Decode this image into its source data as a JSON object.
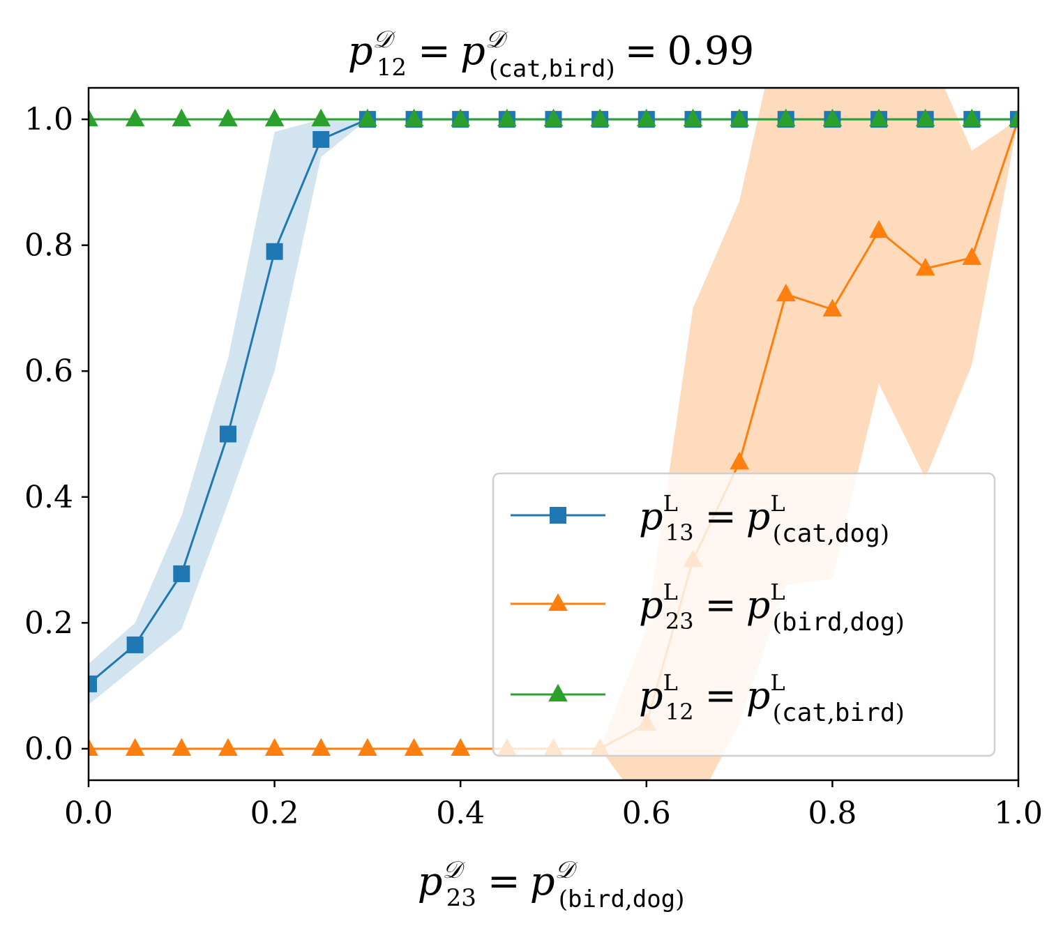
{
  "chart_data": {
    "type": "line",
    "title": {
      "lhs": "p",
      "lhs_sub": "12",
      "lhs_sup": "𝒟",
      "eq1": "=",
      "rhs": "p",
      "rhs_sup": "𝒟",
      "rhs_sub_open": "(",
      "rhs_sub_a": "cat",
      "rhs_sub_comma": ",",
      "rhs_sub_b": "bird",
      "rhs_sub_close": ")",
      "eq2": "=",
      "value": "0.99"
    },
    "xlabel": {
      "lhs": "p",
      "lhs_sub": "23",
      "lhs_sup": "𝒟",
      "eq": "=",
      "rhs": "p",
      "rhs_sup": "𝒟",
      "rhs_sub_open": "(",
      "rhs_sub_a": "bird",
      "rhs_sub_comma": ",",
      "rhs_sub_b": "dog",
      "rhs_sub_close": ")"
    },
    "ylabel": "",
    "xlim": [
      0.0,
      1.0
    ],
    "ylim": [
      -0.05,
      1.05
    ],
    "xticks": [
      "0.0",
      "0.2",
      "0.4",
      "0.6",
      "0.8",
      "1.0"
    ],
    "yticks": [
      "0.0",
      "0.2",
      "0.4",
      "0.6",
      "0.8",
      "1.0"
    ],
    "grid": false,
    "legend_position": "lower-right",
    "x": [
      0.0,
      0.05,
      0.1,
      0.15,
      0.2,
      0.25,
      0.3,
      0.35,
      0.4,
      0.45,
      0.5,
      0.55,
      0.6,
      0.65,
      0.7,
      0.75,
      0.8,
      0.85,
      0.9,
      0.95,
      1.0
    ],
    "series": [
      {
        "name": "p13 = p(cat,dog)",
        "legend": {
          "sym": "p",
          "sub": "13",
          "sup": "L",
          "eq": "=",
          "rsym": "p",
          "rsup": "L",
          "open": "(",
          "a": "cat",
          "comma": ",",
          "b": "dog",
          "close": ")"
        },
        "color": "#1f77b4",
        "fill_color": "#1f77b4",
        "marker": "square",
        "values": [
          0.103,
          0.165,
          0.278,
          0.5,
          0.79,
          0.968,
          1.0,
          1.0,
          1.0,
          1.0,
          1.0,
          1.0,
          1.0,
          1.0,
          1.0,
          1.0,
          1.0,
          1.0,
          1.0,
          1.0,
          1.0
        ],
        "lower": [
          0.07,
          0.13,
          0.19,
          0.39,
          0.6,
          0.94,
          1.0,
          1.0,
          1.0,
          1.0,
          1.0,
          1.0,
          1.0,
          1.0,
          1.0,
          1.0,
          1.0,
          1.0,
          1.0,
          1.0,
          1.0
        ],
        "upper": [
          0.135,
          0.2,
          0.37,
          0.62,
          0.98,
          1.0,
          1.0,
          1.0,
          1.0,
          1.0,
          1.0,
          1.0,
          1.0,
          1.0,
          1.0,
          1.0,
          1.0,
          1.0,
          1.0,
          1.0,
          1.0
        ]
      },
      {
        "name": "p23 = p(bird,dog)",
        "legend": {
          "sym": "p",
          "sub": "23",
          "sup": "L",
          "eq": "=",
          "rsym": "p",
          "rsup": "L",
          "open": "(",
          "a": "bird",
          "comma": ",",
          "b": "dog",
          "close": ")"
        },
        "color": "#ff7f0e",
        "fill_color": "#ffdbbe",
        "marker": "triangle",
        "values": [
          0.0,
          0.0,
          0.0,
          0.0,
          0.0,
          0.0,
          0.0,
          0.0,
          0.0,
          0.0,
          0.0,
          0.0,
          0.04,
          0.3,
          0.455,
          0.722,
          0.698,
          0.823,
          0.763,
          0.78,
          1.0
        ],
        "lower": [
          0.0,
          0.0,
          0.0,
          0.0,
          0.0,
          0.0,
          0.0,
          0.0,
          0.0,
          0.0,
          0.0,
          0.0,
          -0.1,
          -0.1,
          0.04,
          0.26,
          0.27,
          0.58,
          0.43,
          0.61,
          1.0
        ],
        "upper": [
          0.0,
          0.0,
          0.0,
          0.0,
          0.0,
          0.0,
          0.0,
          0.0,
          0.0,
          0.0,
          0.0,
          0.0,
          0.19,
          0.7,
          0.87,
          1.2,
          1.15,
          1.08,
          1.12,
          0.95,
          1.0
        ]
      },
      {
        "name": "p12 = p(cat,bird)",
        "legend": {
          "sym": "p",
          "sub": "12",
          "sup": "L",
          "eq": "=",
          "rsym": "p",
          "rsup": "L",
          "open": "(",
          "a": "cat",
          "comma": ",",
          "b": "bird",
          "close": ")"
        },
        "color": "#2ca02c",
        "fill_color": "#2ca02c",
        "marker": "triangle",
        "values": [
          1.0,
          1.0,
          1.0,
          1.0,
          1.0,
          1.0,
          1.0,
          1.0,
          1.0,
          1.0,
          1.0,
          1.0,
          1.0,
          1.0,
          1.0,
          1.0,
          1.0,
          1.0,
          1.0,
          1.0,
          1.0
        ],
        "lower": [],
        "upper": []
      }
    ]
  }
}
